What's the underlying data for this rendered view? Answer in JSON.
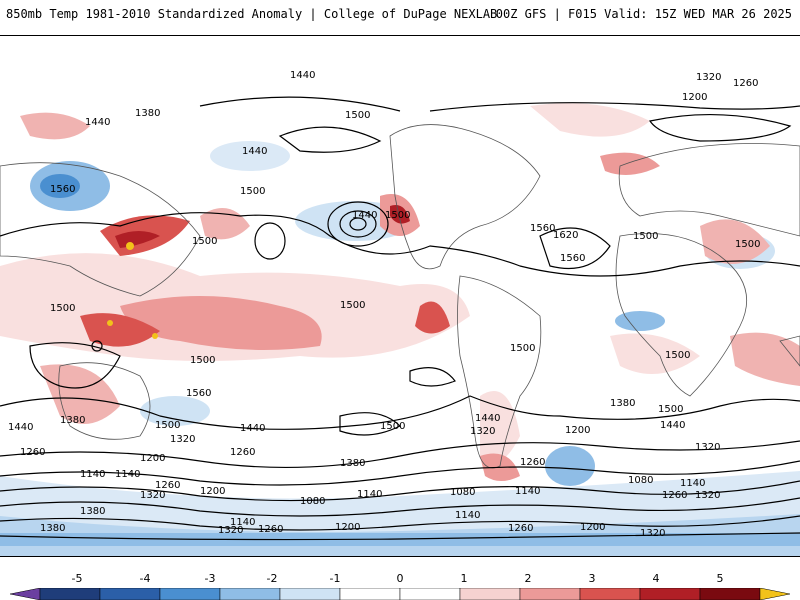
{
  "header": {
    "title": "850mb Temp 1981-2010 Standardized Anomaly | College of DuPage NEXLAB",
    "run_info": "00Z GFS | F015 Valid: 15Z WED MAR 26 2025"
  },
  "map": {
    "contour_labels": [
      "1440",
      "1500",
      "1320",
      "1260",
      "1200",
      "1380",
      "1560",
      "1620",
      "1140",
      "1080"
    ]
  },
  "colorbar": {
    "ticks": [
      "-5",
      "-4",
      "-3",
      "-2",
      "-1",
      "0",
      "1",
      "2",
      "3",
      "4",
      "5"
    ],
    "colors": [
      "#6b3fa0",
      "#1f3d7a",
      "#2b5fa8",
      "#4a8fd0",
      "#8fbde6",
      "#cfe3f4",
      "#ffffff",
      "#ffffff",
      "#f6d2d0",
      "#ec9a98",
      "#d9534f",
      "#b01f26",
      "#7a0a10",
      "#f2c21a"
    ]
  }
}
